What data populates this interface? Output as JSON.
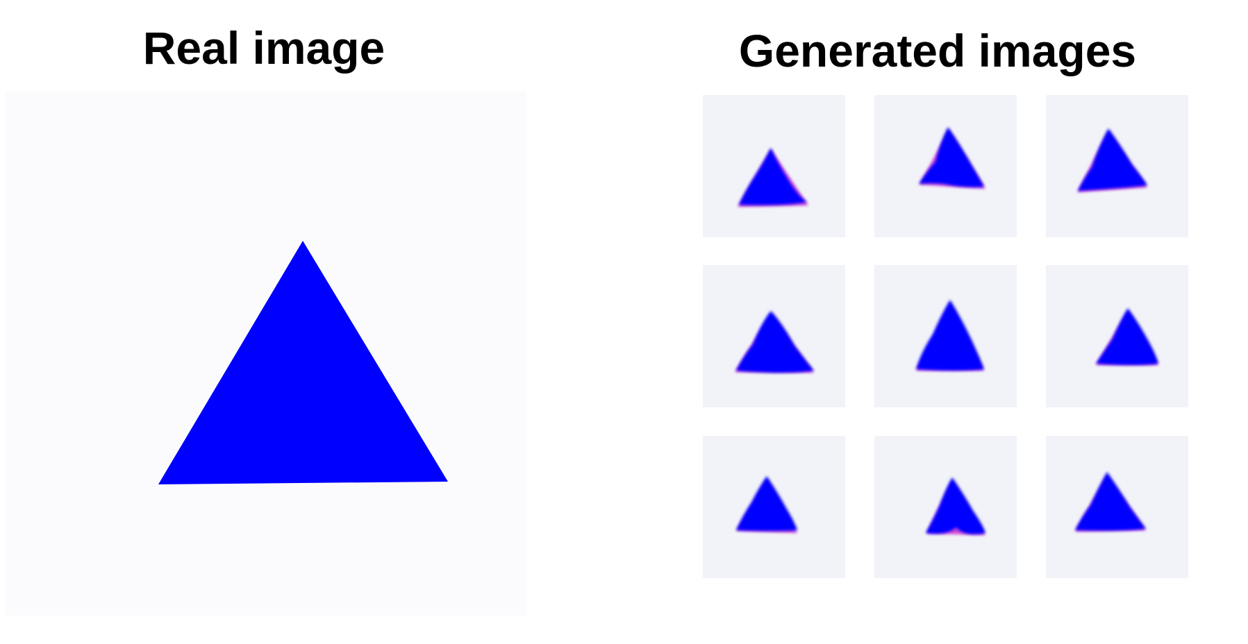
{
  "titles": {
    "real": "Real image",
    "generated": "Generated images"
  },
  "colors": {
    "triangle": "#0000ff",
    "real_background": "#fbfbfd",
    "generated_background": "#f2f3f8",
    "generated_fringe": "#c000c8"
  },
  "icons": {
    "real": "blue-triangle-icon",
    "generated": "blurred-blue-triangle-icon"
  },
  "generated_grid": {
    "rows": 3,
    "columns": 3,
    "count": 9
  }
}
